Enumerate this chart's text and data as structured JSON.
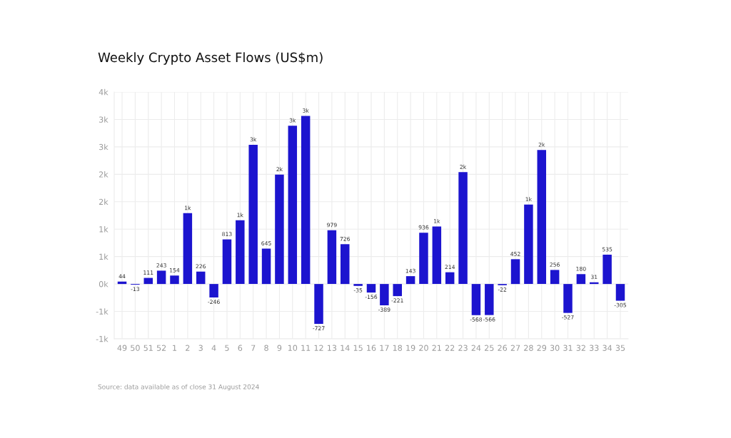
{
  "chart_data": {
    "type": "bar",
    "title": "Weekly Crypto Asset Flows (US$m)",
    "categories": [
      "49",
      "50",
      "51",
      "52",
      "1",
      "2",
      "3",
      "4",
      "5",
      "6",
      "7",
      "8",
      "9",
      "10",
      "11",
      "12",
      "13",
      "14",
      "15",
      "16",
      "17",
      "18",
      "19",
      "20",
      "21",
      "22",
      "23",
      "24",
      "25",
      "26",
      "27",
      "28",
      "29",
      "30",
      "31",
      "32",
      "33",
      "34",
      "35"
    ],
    "values": [
      44,
      -13,
      111,
      243,
      154,
      1291,
      226,
      -246,
      813,
      1161,
      2539,
      645,
      1996,
      2887,
      3065,
      -727,
      979,
      726,
      -35,
      -156,
      -389,
      -221,
      143,
      936,
      1048,
      214,
      2039,
      -568,
      -566,
      -22,
      452,
      1448,
      2443,
      256,
      -527,
      180,
      31,
      535,
      -305
    ],
    "value_labels": [
      "44",
      "-13",
      "111",
      "243",
      "154",
      "1k",
      "226",
      "-246",
      "813",
      "1k",
      "3k",
      "645",
      "2k",
      "3k",
      "3k",
      "-727",
      "979",
      "726",
      "-35",
      "-156",
      "-389",
      "-221",
      "143",
      "936",
      "1k",
      "214",
      "2k",
      "-568",
      "-566",
      "-22",
      "452",
      "1k",
      "2k",
      "256",
      "-527",
      "180",
      "31",
      "535",
      "-305"
    ],
    "color": "#1c14cf",
    "ylim": [
      -1000,
      3500
    ],
    "yticks": [
      {
        "value": -1000,
        "label": "-1k"
      },
      {
        "value": -500,
        "label": "-1k"
      },
      {
        "value": 0,
        "label": "0k"
      },
      {
        "value": 500,
        "label": "1k"
      },
      {
        "value": 1000,
        "label": "1k"
      },
      {
        "value": 1500,
        "label": "2k"
      },
      {
        "value": 2000,
        "label": "2k"
      },
      {
        "value": 2500,
        "label": "3k"
      },
      {
        "value": 3000,
        "label": "3k"
      },
      {
        "value": 3500,
        "label": "4k"
      }
    ],
    "grid": true,
    "annotations": [
      "Source: data available as of close 31 August 2024"
    ]
  }
}
